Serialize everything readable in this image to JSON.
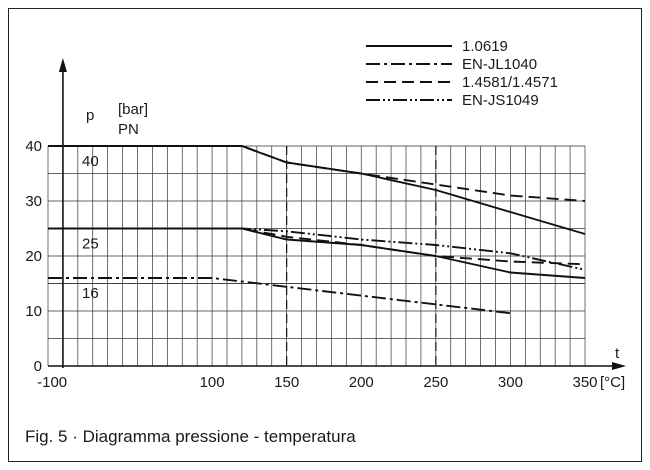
{
  "caption": "Fig. 5 · Diagramma pressione - temperatura",
  "chart_data": {
    "type": "line",
    "xlabel": "t",
    "xunit": "[°C]",
    "ylabel": "p",
    "yunit": "[bar]",
    "pn_label": "PN",
    "xlim": [
      -10,
      350
    ],
    "ylim": [
      0,
      40
    ],
    "xticks": [
      -10,
      0,
      100,
      150,
      200,
      250,
      300,
      350
    ],
    "xtick_labels": [
      "-10",
      "0",
      "100",
      "150",
      "200",
      "250",
      "300",
      "350"
    ],
    "yticks": [
      0,
      10,
      20,
      30,
      40
    ],
    "ytick_labels": [
      "0",
      "10",
      "20",
      "30",
      "40"
    ],
    "grid": true,
    "pn_levels": [
      {
        "label": "40",
        "value": 40
      },
      {
        "label": "25",
        "value": 25
      },
      {
        "label": "16",
        "value": 16
      }
    ],
    "reference_lines_x": [
      150,
      250
    ],
    "legend_position": "top-right",
    "series": [
      {
        "name": "1.0619",
        "dash": "solid",
        "x": [
          -10,
          120,
          150,
          200,
          250,
          300,
          350
        ],
        "y": [
          40,
          40,
          37,
          35,
          32,
          28,
          24
        ]
      },
      {
        "name": "1.0619",
        "dash": "solid",
        "x": [
          -10,
          120,
          150,
          200,
          250,
          300,
          350
        ],
        "y": [
          25,
          25,
          23,
          22,
          20,
          17,
          16
        ]
      },
      {
        "name": "EN-JL1040",
        "dash": "dash-dot",
        "x": [
          -10,
          100,
          300
        ],
        "y": [
          16,
          16,
          9.6
        ]
      },
      {
        "name": "1.4581/1.4571",
        "dash": "dashed",
        "x": [
          -10,
          120,
          150,
          200,
          250,
          300,
          350
        ],
        "y": [
          40,
          40,
          37,
          35,
          33,
          31,
          30
        ]
      },
      {
        "name": "1.4581/1.4571",
        "dash": "dashed",
        "x": [
          -10,
          120,
          150,
          200,
          250,
          300,
          350
        ],
        "y": [
          25,
          25,
          23.5,
          22,
          20,
          19,
          18.5
        ]
      },
      {
        "name": "EN-JS1049",
        "dash": "dash-dot-dot",
        "x": [
          -10,
          120,
          150,
          200,
          250,
          300,
          350
        ],
        "y": [
          25,
          25,
          24.5,
          23,
          22,
          20.5,
          17.5
        ]
      }
    ],
    "legend": [
      {
        "name": "1.0619",
        "dash": "solid"
      },
      {
        "name": "EN-JL1040",
        "dash": "dash-dot"
      },
      {
        "name": "1.4581/1.4571",
        "dash": "dashed"
      },
      {
        "name": "EN-JS1049",
        "dash": "dash-dot-dot"
      }
    ]
  }
}
